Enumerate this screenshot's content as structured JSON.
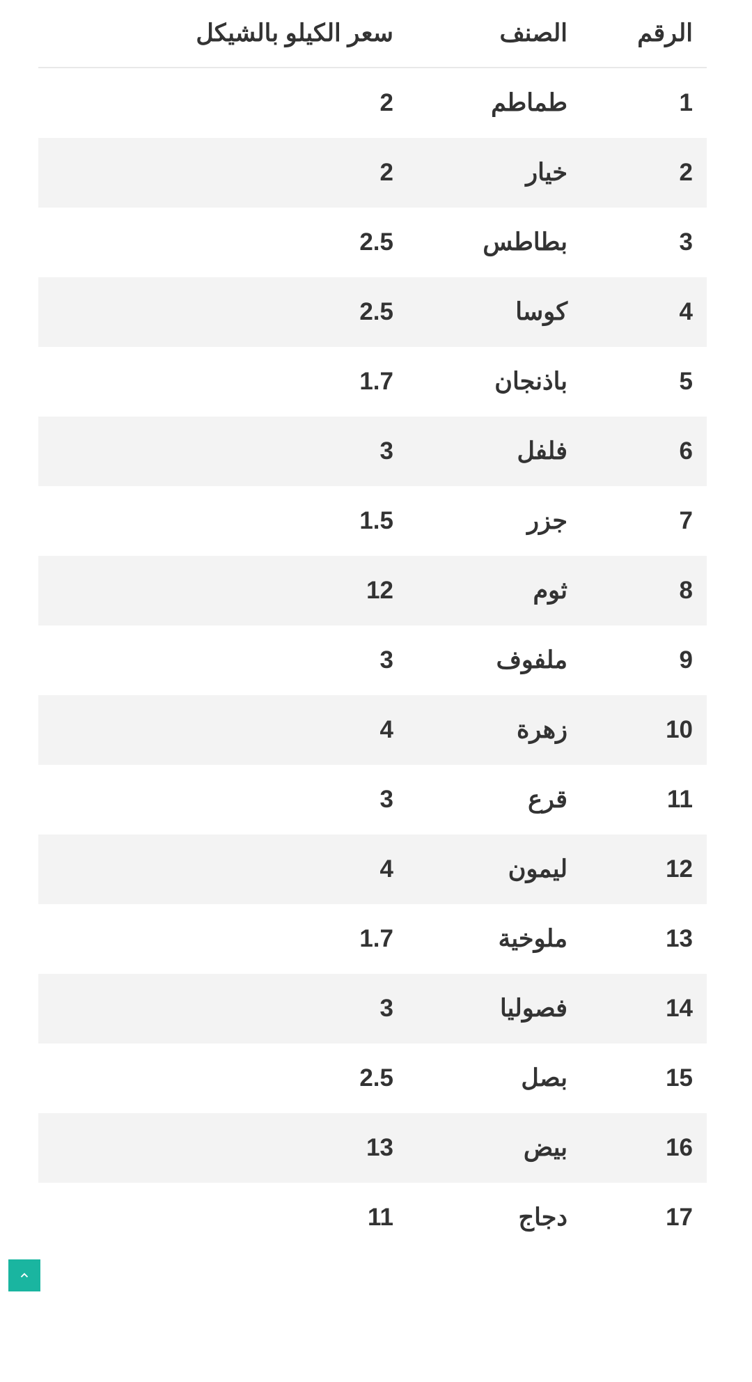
{
  "table": {
    "columns": [
      "الرقم",
      "الصنف",
      "سعر الكيلو بالشيكل"
    ],
    "rows": [
      [
        "1",
        "طماطم",
        "2"
      ],
      [
        "2",
        "خيار",
        "2"
      ],
      [
        "3",
        "بطاطس",
        "2.5"
      ],
      [
        "4",
        "كوسا",
        "2.5"
      ],
      [
        "5",
        "باذنجان",
        "1.7"
      ],
      [
        "6",
        "فلفل",
        "3"
      ],
      [
        "7",
        "جزر",
        "1.5"
      ],
      [
        "8",
        "ثوم",
        "12"
      ],
      [
        "9",
        "ملفوف",
        "3"
      ],
      [
        "10",
        "زهرة",
        "4"
      ],
      [
        "11",
        "قرع",
        "3"
      ],
      [
        "12",
        "ليمون",
        "4"
      ],
      [
        "13",
        "ملوخية",
        "1.7"
      ],
      [
        "14",
        "فصوليا",
        "3"
      ],
      [
        "15",
        "بصل",
        "2.5"
      ],
      [
        "16",
        "بيض",
        "13"
      ],
      [
        "17",
        "دجاج",
        "11"
      ]
    ],
    "header_bg": "#ffffff",
    "row_even_bg": "#f3f3f3",
    "row_odd_bg": "#ffffff",
    "text_color": "#333333",
    "border_color": "#e8e8e8",
    "fontsize": 35,
    "fontweight": 700
  },
  "scroll_button": {
    "bg_color": "#1ab5a0",
    "icon_color": "#ffffff"
  }
}
